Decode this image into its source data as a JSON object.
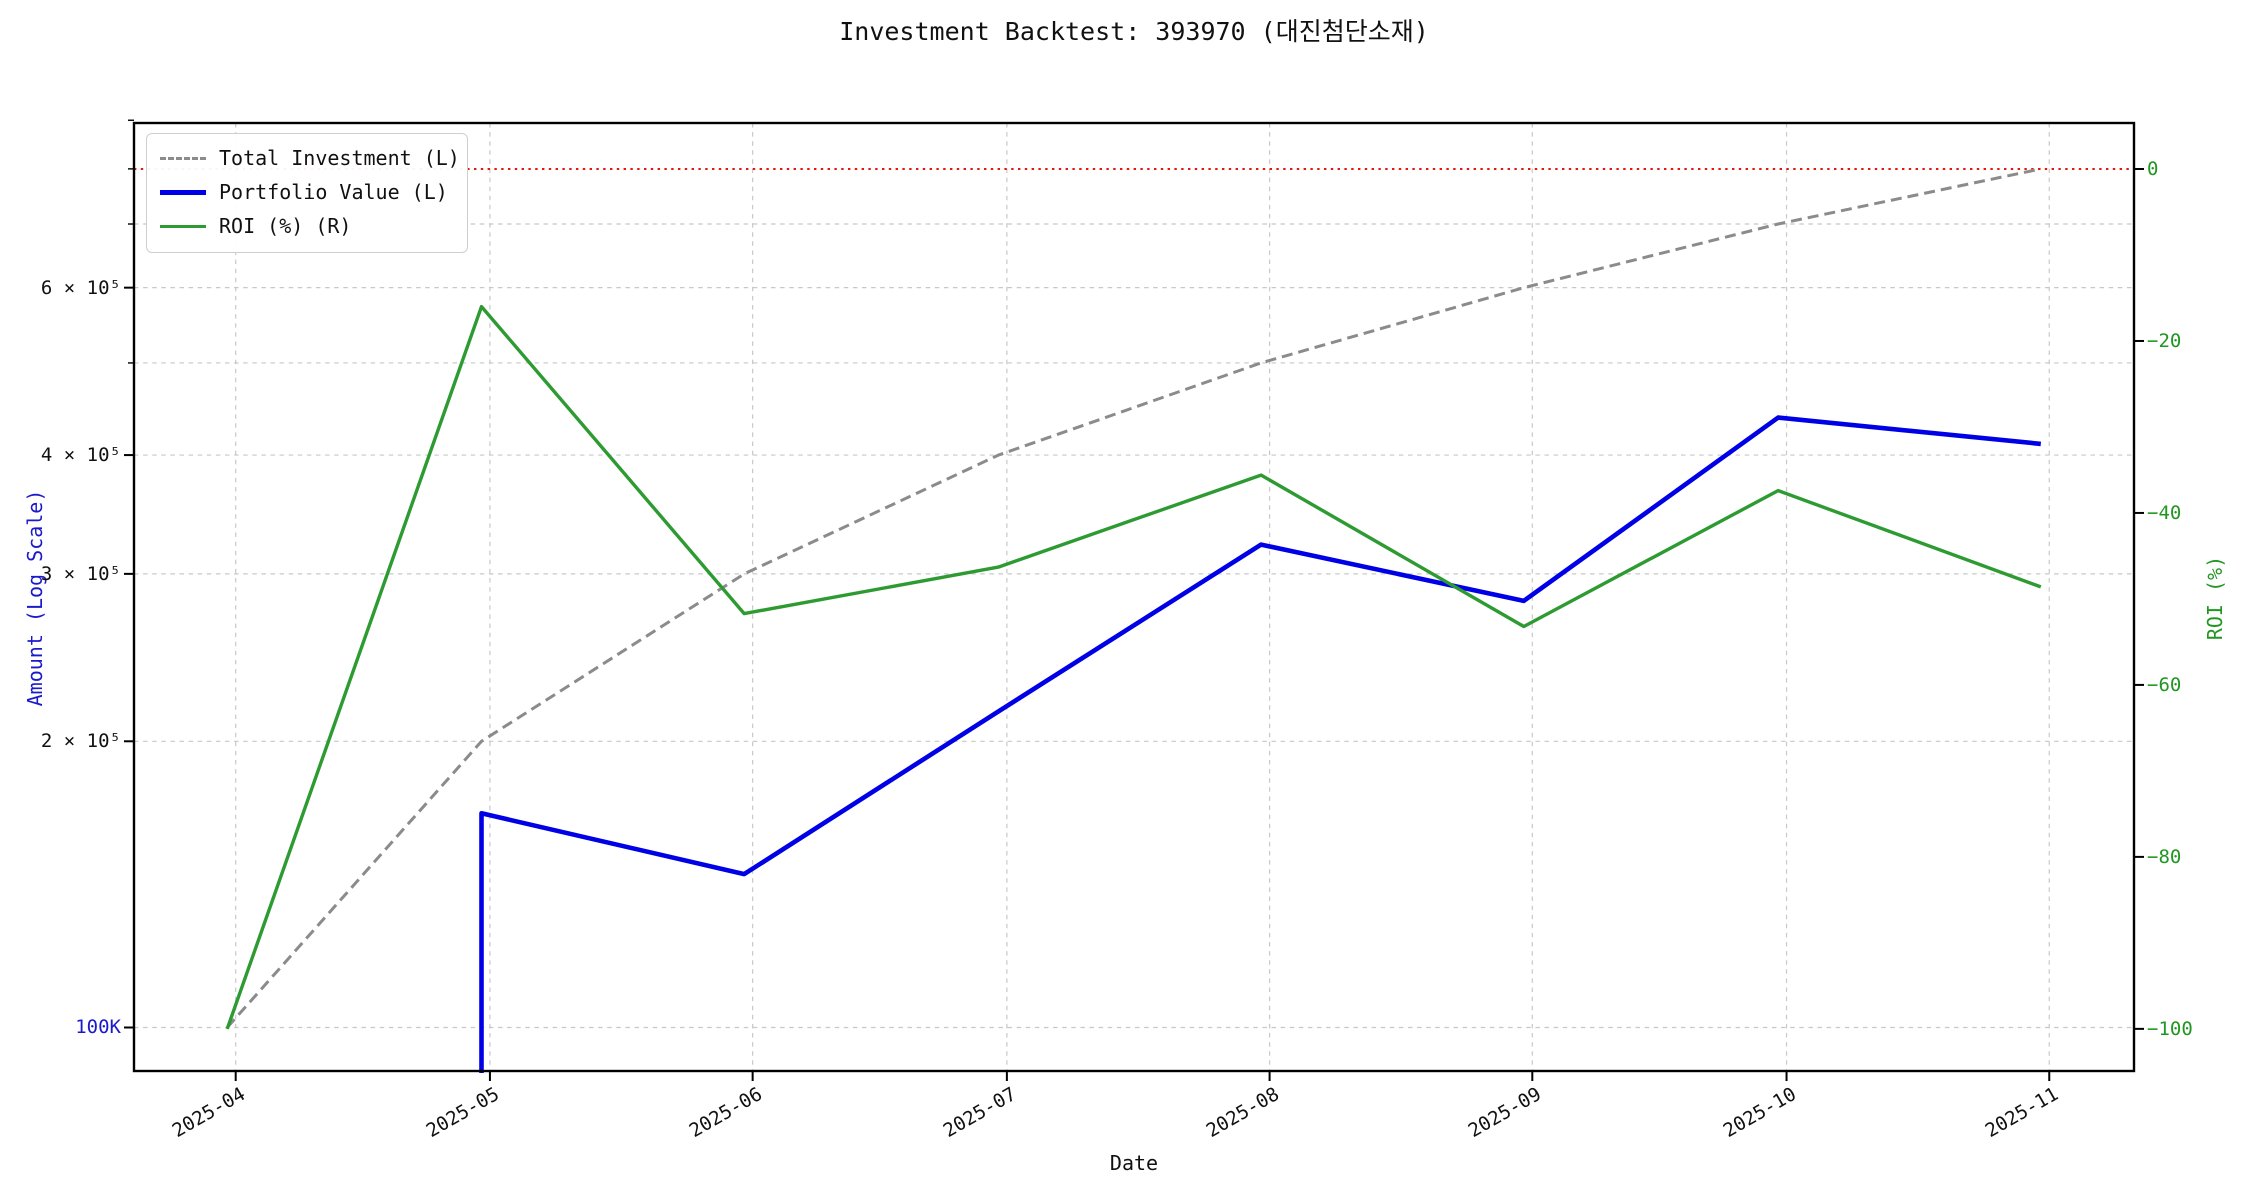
{
  "title": "Investment Backtest: 393970 (대진첨단소재)",
  "colors": {
    "investment_line": "#8b8b8b",
    "portfolio_line": "#0000e6",
    "roi_line": "#2e9b32",
    "zero_line": "#e8150f",
    "amount_axis_text": "#1a1acb",
    "roi_axis_text": "#229622",
    "grid": "#c8c8c8",
    "tick_text": "#111111"
  },
  "legend": {
    "items": [
      {
        "label": "Total Investment (L)",
        "style": "dashed",
        "color": "#8b8b8b"
      },
      {
        "label": "Portfolio Value (L)",
        "style": "solid",
        "color": "#0000e6"
      },
      {
        "label": "ROI (%) (R)",
        "style": "solid",
        "color": "#2e9b32"
      }
    ]
  },
  "axes": {
    "x_label": "Date",
    "y_left_label": "Amount (Log Scale)",
    "y_right_label": "ROI (%)",
    "x_ticks": [
      {
        "label": "2025-04",
        "date": "2025-04-01"
      },
      {
        "label": "2025-05",
        "date": "2025-05-01"
      },
      {
        "label": "2025-06",
        "date": "2025-06-01"
      },
      {
        "label": "2025-07",
        "date": "2025-07-01"
      },
      {
        "label": "2025-08",
        "date": "2025-08-01"
      },
      {
        "label": "2025-09",
        "date": "2025-09-01"
      },
      {
        "label": "2025-10",
        "date": "2025-10-01"
      },
      {
        "label": "2025-11",
        "date": "2025-11-01"
      }
    ],
    "y_left_ticks": [
      {
        "label": "100K",
        "value": 100000,
        "color": "#1a1acb"
      },
      {
        "label": "2 × 10⁵",
        "value": 200000,
        "color": "#111111"
      },
      {
        "label": "3 × 10⁵",
        "value": 300000,
        "color": "#111111"
      },
      {
        "label": "4 × 10⁵",
        "value": 400000,
        "color": "#111111"
      },
      {
        "label": "6 × 10⁵",
        "value": 600000,
        "color": "#111111"
      }
    ],
    "y_left_minor_ticks": [
      500000,
      700000,
      800000,
      900000
    ],
    "y_left_grid": [
      100000,
      200000,
      300000,
      400000,
      500000,
      600000,
      700000
    ],
    "y_right_ticks": [
      {
        "label": "0",
        "value": 0
      },
      {
        "label": "−20",
        "value": -20
      },
      {
        "label": "−40",
        "value": -40
      },
      {
        "label": "−60",
        "value": -60
      },
      {
        "label": "−80",
        "value": -80
      },
      {
        "label": "−100",
        "value": -100
      }
    ]
  },
  "chart_data": {
    "type": "line",
    "title": "Investment Backtest: 393970 (대진첨단소재)",
    "xlabel": "Date",
    "ylabel_left": "Amount (Log Scale)",
    "ylabel_right": "ROI (%)",
    "x_range": [
      "2025-03-20",
      "2025-11-11"
    ],
    "y_left": {
      "scale": "log",
      "range": [
        90000,
        894000
      ]
    },
    "y_right": {
      "scale": "linear",
      "range": [
        -104.9,
        5.35
      ]
    },
    "baseline_right_value": 0,
    "grid": true,
    "legend_position": "upper left",
    "dates": [
      "2025-03-31",
      "2025-04-30",
      "2025-05-31",
      "2025-06-30",
      "2025-07-31",
      "2025-08-31",
      "2025-09-30",
      "2025-10-31"
    ],
    "series": [
      {
        "id": "total-investment",
        "name": "Total Investment (L)",
        "axis": "left",
        "style": "dashed",
        "color": "#8b8b8b",
        "values": [
          100000,
          200000,
          300000,
          400000,
          500000,
          600000,
          700000,
          800000
        ]
      },
      {
        "id": "portfolio-value",
        "name": "Portfolio Value (L)",
        "axis": "left",
        "style": "solid",
        "color": "#0000e6",
        "dates": [
          "2025-04-30",
          "2025-04-30",
          "2025-05-31",
          "2025-06-30",
          "2025-07-31",
          "2025-08-31",
          "2025-09-30",
          "2025-10-31"
        ],
        "values": [
          0,
          168000,
          145000,
          215000,
          322000,
          281000,
          438000,
          411000
        ]
      },
      {
        "id": "roi",
        "name": "ROI (%) (R)",
        "axis": "right",
        "style": "solid",
        "color": "#2e9b32",
        "values": [
          -100,
          -16,
          -51.7,
          -46.3,
          -35.6,
          -53.2,
          -37.4,
          -48.6
        ]
      }
    ]
  }
}
